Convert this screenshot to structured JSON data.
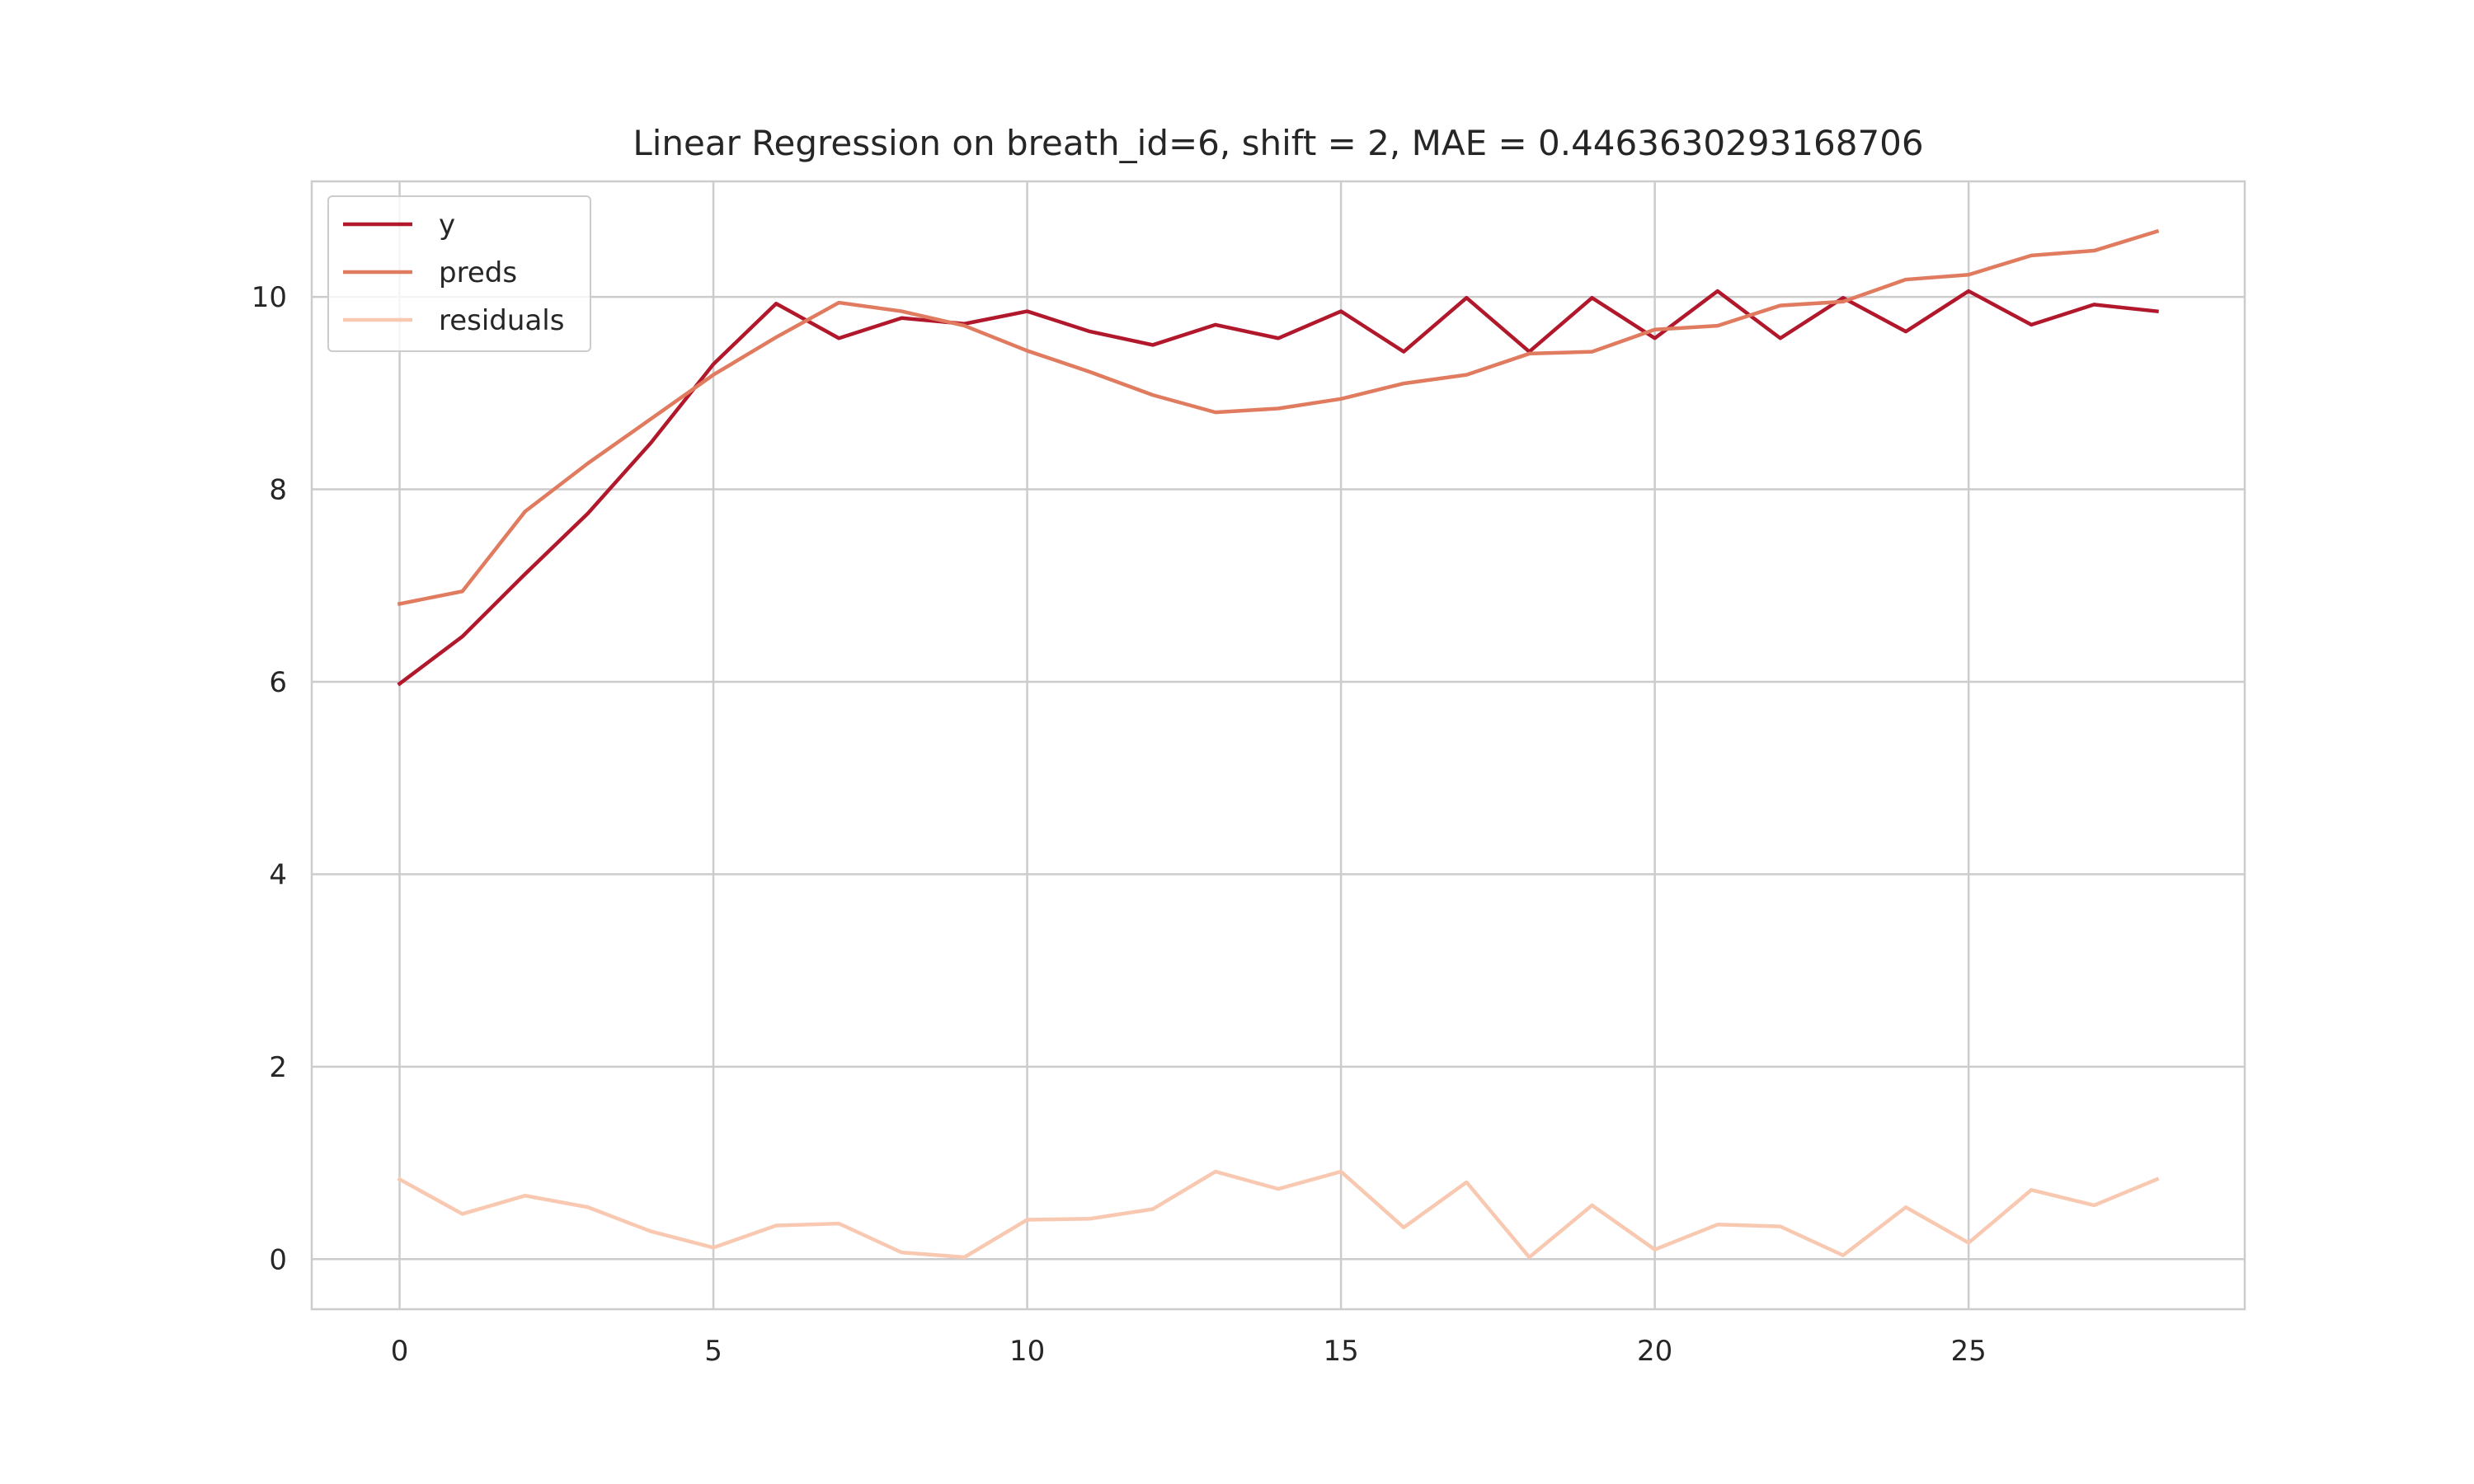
{
  "chart_data": {
    "type": "line",
    "title": "Linear Regression on breath_id=6, shift = 2, MAE = 0.4463630293168706",
    "xlabel": "",
    "ylabel": "",
    "xlim": [
      -1.4,
      29.4
    ],
    "ylim": [
      -0.52,
      11.2
    ],
    "xticks": [
      0,
      5,
      10,
      15,
      20,
      25
    ],
    "yticks": [
      0,
      2,
      4,
      6,
      8,
      10
    ],
    "grid": true,
    "legend_position": "upper-left",
    "x": [
      0,
      1,
      2,
      3,
      4,
      5,
      6,
      7,
      8,
      9,
      10,
      11,
      12,
      13,
      14,
      15,
      16,
      17,
      18,
      19,
      20,
      21,
      22,
      23,
      24,
      25,
      26,
      27,
      28
    ],
    "series": [
      {
        "name": "y",
        "color": "#b2182b",
        "values": [
          5.98,
          6.47,
          7.12,
          7.75,
          8.48,
          9.3,
          9.93,
          9.57,
          9.78,
          9.72,
          9.85,
          9.64,
          9.5,
          9.71,
          9.57,
          9.85,
          9.43,
          9.99,
          9.43,
          9.99,
          9.57,
          10.06,
          9.57,
          9.99,
          9.64,
          10.06,
          9.71,
          9.92,
          9.85
        ]
      },
      {
        "name": "preds",
        "color": "#e07b5f",
        "values": [
          6.81,
          6.94,
          7.77,
          8.27,
          8.73,
          9.19,
          9.58,
          9.94,
          9.85,
          9.7,
          9.44,
          9.22,
          8.98,
          8.8,
          8.84,
          8.94,
          9.1,
          9.19,
          9.41,
          9.43,
          9.66,
          9.7,
          9.91,
          9.95,
          10.18,
          10.23,
          10.43,
          10.48,
          10.68
        ]
      },
      {
        "name": "residuals",
        "color": "#f8c8b1",
        "values": [
          0.83,
          0.47,
          0.66,
          0.54,
          0.29,
          0.12,
          0.35,
          0.37,
          0.07,
          0.02,
          0.41,
          0.42,
          0.52,
          0.91,
          0.73,
          0.91,
          0.33,
          0.8,
          0.02,
          0.56,
          0.1,
          0.36,
          0.34,
          0.04,
          0.54,
          0.17,
          0.72,
          0.56,
          0.83
        ]
      }
    ]
  }
}
